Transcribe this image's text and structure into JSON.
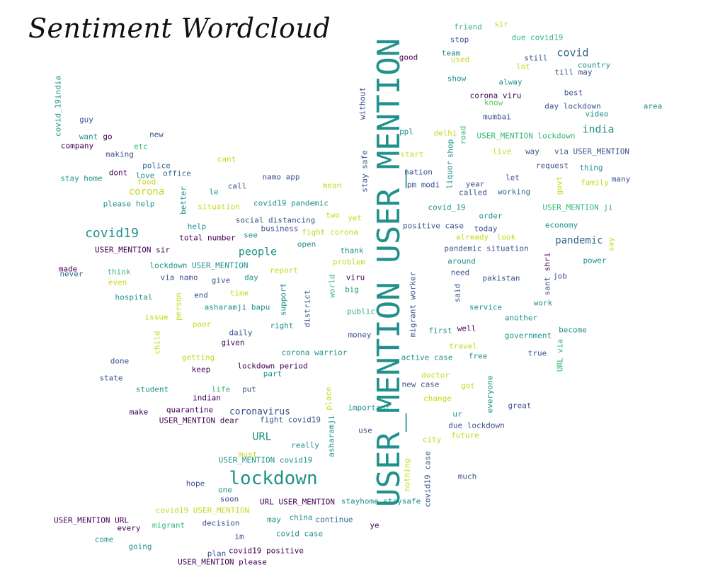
{
  "title": "Sentiment Wordcloud",
  "palette": {
    "dark_purple": "#440154",
    "indigo": "#3b528b",
    "blue": "#31688e",
    "teal": "#21918c",
    "green": "#35b779",
    "light_green": "#5ec962",
    "yellow": "#c8d71f"
  },
  "words": [
    {
      "text": "USER_MENTION USER_MENTION",
      "color": "teal"
    },
    {
      "text": "lockdown",
      "color": "teal"
    },
    {
      "text": "covid19",
      "color": "teal"
    },
    {
      "text": "people",
      "color": "teal"
    },
    {
      "text": "URL",
      "color": "teal"
    },
    {
      "text": "india",
      "color": "teal"
    },
    {
      "text": "covid",
      "color": "blue"
    },
    {
      "text": "pandemic",
      "color": "blue"
    },
    {
      "text": "corona",
      "color": "yellow"
    },
    {
      "text": "coronavirus",
      "color": "indigo"
    },
    {
      "text": "USER_MENTION lockdown",
      "color": "green"
    },
    {
      "text": "friend",
      "color": "green"
    },
    {
      "text": "sir",
      "color": "yellow"
    },
    {
      "text": "stop",
      "color": "indigo"
    },
    {
      "text": "due covid19",
      "color": "green"
    },
    {
      "text": "good",
      "color": "dark_purple"
    },
    {
      "text": "team",
      "color": "teal"
    },
    {
      "text": "used",
      "color": "yellow"
    },
    {
      "text": "still",
      "color": "indigo"
    },
    {
      "text": "country",
      "color": "teal"
    },
    {
      "text": "lot",
      "color": "yellow"
    },
    {
      "text": "till may",
      "color": "indigo"
    },
    {
      "text": "show",
      "color": "teal"
    },
    {
      "text": "alway",
      "color": "teal"
    },
    {
      "text": "corona viru",
      "color": "dark_purple"
    },
    {
      "text": "best",
      "color": "indigo"
    },
    {
      "text": "know",
      "color": "light_green"
    },
    {
      "text": "area",
      "color": "teal"
    },
    {
      "text": "day lockdown",
      "color": "indigo"
    },
    {
      "text": "video",
      "color": "teal"
    },
    {
      "text": "mumbai",
      "color": "indigo"
    },
    {
      "text": "without",
      "color": "indigo"
    },
    {
      "text": "covid_19india",
      "color": "teal"
    },
    {
      "text": "guy",
      "color": "indigo"
    },
    {
      "text": "want",
      "color": "teal"
    },
    {
      "text": "go",
      "color": "dark_purple"
    },
    {
      "text": "new",
      "color": "indigo"
    },
    {
      "text": "company",
      "color": "dark_purple"
    },
    {
      "text": "etc",
      "color": "green"
    },
    {
      "text": "making",
      "color": "indigo"
    },
    {
      "text": "ppl",
      "color": "teal"
    },
    {
      "text": "delhi",
      "color": "yellow"
    },
    {
      "text": "road",
      "color": "green"
    },
    {
      "text": "shop",
      "color": "teal"
    },
    {
      "text": "start",
      "color": "yellow"
    },
    {
      "text": "live",
      "color": "yellow"
    },
    {
      "text": "way",
      "color": "indigo"
    },
    {
      "text": "via USER_MENTION",
      "color": "indigo"
    },
    {
      "text": "stay safe",
      "color": "indigo"
    },
    {
      "text": "cant",
      "color": "yellow"
    },
    {
      "text": "police",
      "color": "blue"
    },
    {
      "text": "dont",
      "color": "dark_purple"
    },
    {
      "text": "love",
      "color": "teal"
    },
    {
      "text": "office",
      "color": "blue"
    },
    {
      "text": "food",
      "color": "yellow"
    },
    {
      "text": "stay home",
      "color": "teal"
    },
    {
      "text": "nation",
      "color": "indigo"
    },
    {
      "text": "liquor",
      "color": "teal"
    },
    {
      "text": "request",
      "color": "indigo"
    },
    {
      "text": "thing",
      "color": "teal"
    },
    {
      "text": "namo app",
      "color": "indigo"
    },
    {
      "text": "let",
      "color": "indigo"
    },
    {
      "text": "many",
      "color": "indigo"
    },
    {
      "text": "govt",
      "color": "yellow"
    },
    {
      "text": "family",
      "color": "yellow"
    },
    {
      "text": "better",
      "color": "teal"
    },
    {
      "text": "call",
      "color": "indigo"
    },
    {
      "text": "mean",
      "color": "yellow"
    },
    {
      "text": "pm modi",
      "color": "indigo"
    },
    {
      "text": "year",
      "color": "indigo"
    },
    {
      "text": "called",
      "color": "indigo"
    },
    {
      "text": "working",
      "color": "blue"
    },
    {
      "text": "le",
      "color": "teal"
    },
    {
      "text": "covid19 pandemic",
      "color": "teal"
    },
    {
      "text": "please help",
      "color": "teal"
    },
    {
      "text": "situation",
      "color": "yellow"
    },
    {
      "text": "covid_19",
      "color": "teal"
    },
    {
      "text": "USER_MENTION ji",
      "color": "green"
    },
    {
      "text": "two",
      "color": "yellow"
    },
    {
      "text": "yet",
      "color": "yellow"
    },
    {
      "text": "order",
      "color": "teal"
    },
    {
      "text": "social distancing",
      "color": "indigo"
    },
    {
      "text": "help",
      "color": "teal"
    },
    {
      "text": "business",
      "color": "indigo"
    },
    {
      "text": "positive case",
      "color": "indigo"
    },
    {
      "text": "economy",
      "color": "teal"
    },
    {
      "text": "fight corona",
      "color": "yellow"
    },
    {
      "text": "today",
      "color": "indigo"
    },
    {
      "text": "total number",
      "color": "dark_purple"
    },
    {
      "text": "see",
      "color": "teal"
    },
    {
      "text": "already",
      "color": "yellow"
    },
    {
      "text": "look",
      "color": "yellow"
    },
    {
      "text": "say",
      "color": "yellow"
    },
    {
      "text": "open",
      "color": "teal"
    },
    {
      "text": "USER_MENTION sir",
      "color": "dark_purple"
    },
    {
      "text": "thank",
      "color": "teal"
    },
    {
      "text": "pandemic situation",
      "color": "indigo"
    },
    {
      "text": "shri",
      "color": "dark_purple"
    },
    {
      "text": "lockdown USER_MENTION",
      "color": "teal"
    },
    {
      "text": "problem",
      "color": "yellow"
    },
    {
      "text": "around",
      "color": "teal"
    },
    {
      "text": "power",
      "color": "teal"
    },
    {
      "text": "made",
      "color": "dark_purple"
    },
    {
      "text": "think",
      "color": "green"
    },
    {
      "text": "report",
      "color": "yellow"
    },
    {
      "text": "never",
      "color": "blue"
    },
    {
      "text": "viru",
      "color": "dark_purple"
    },
    {
      "text": "need",
      "color": "indigo"
    },
    {
      "text": "via namo",
      "color": "indigo"
    },
    {
      "text": "day",
      "color": "teal"
    },
    {
      "text": "give",
      "color": "indigo"
    },
    {
      "text": "pakistan",
      "color": "indigo"
    },
    {
      "text": "job",
      "color": "indigo"
    },
    {
      "text": "even",
      "color": "yellow"
    },
    {
      "text": "world",
      "color": "green"
    },
    {
      "text": "sant",
      "color": "indigo"
    },
    {
      "text": "big",
      "color": "teal"
    },
    {
      "text": "migrant worker",
      "color": "indigo"
    },
    {
      "text": "support",
      "color": "teal"
    },
    {
      "text": "said",
      "color": "indigo"
    },
    {
      "text": "hospital",
      "color": "teal"
    },
    {
      "text": "end",
      "color": "indigo"
    },
    {
      "text": "time",
      "color": "yellow"
    },
    {
      "text": "work",
      "color": "teal"
    },
    {
      "text": "district",
      "color": "indigo"
    },
    {
      "text": "person",
      "color": "yellow"
    },
    {
      "text": "asharamji bapu",
      "color": "teal"
    },
    {
      "text": "service",
      "color": "teal"
    },
    {
      "text": "issue",
      "color": "yellow"
    },
    {
      "text": "public",
      "color": "green"
    },
    {
      "text": "another",
      "color": "teal"
    },
    {
      "text": "poor",
      "color": "yellow"
    },
    {
      "text": "right",
      "color": "teal"
    },
    {
      "text": "daily",
      "color": "indigo"
    },
    {
      "text": "money",
      "color": "indigo"
    },
    {
      "text": "first",
      "color": "teal"
    },
    {
      "text": "well",
      "color": "dark_purple"
    },
    {
      "text": "government",
      "color": "teal"
    },
    {
      "text": "become",
      "color": "teal"
    },
    {
      "text": "child",
      "color": "yellow"
    },
    {
      "text": "given",
      "color": "dark_purple"
    },
    {
      "text": "travel",
      "color": "yellow"
    },
    {
      "text": "corona warrior",
      "color": "teal"
    },
    {
      "text": "true",
      "color": "indigo"
    },
    {
      "text": "URL via",
      "color": "green"
    },
    {
      "text": "free",
      "color": "teal"
    },
    {
      "text": "getting",
      "color": "yellow"
    },
    {
      "text": "done",
      "color": "indigo"
    },
    {
      "text": "lockdown period",
      "color": "dark_purple"
    },
    {
      "text": "active case",
      "color": "teal"
    },
    {
      "text": "keep",
      "color": "dark_purple"
    },
    {
      "text": "part",
      "color": "teal"
    },
    {
      "text": "state",
      "color": "indigo"
    },
    {
      "text": "doctor",
      "color": "yellow"
    },
    {
      "text": "student",
      "color": "teal"
    },
    {
      "text": "life",
      "color": "green"
    },
    {
      "text": "put",
      "color": "indigo"
    },
    {
      "text": "new case",
      "color": "indigo"
    },
    {
      "text": "got",
      "color": "yellow"
    },
    {
      "text": "indian",
      "color": "dark_purple"
    },
    {
      "text": "place",
      "color": "yellow"
    },
    {
      "text": "change",
      "color": "yellow"
    },
    {
      "text": "everyone",
      "color": "teal"
    },
    {
      "text": "important",
      "color": "teal"
    },
    {
      "text": "make",
      "color": "dark_purple"
    },
    {
      "text": "quarantine",
      "color": "dark_purple"
    },
    {
      "text": "great",
      "color": "indigo"
    },
    {
      "text": "ur",
      "color": "teal"
    },
    {
      "text": "USER_MENTION dear",
      "color": "dark_purple"
    },
    {
      "text": "fight covid19",
      "color": "indigo"
    },
    {
      "text": "due lockdown",
      "color": "indigo"
    },
    {
      "text": "asharamji",
      "color": "teal"
    },
    {
      "text": "use",
      "color": "indigo"
    },
    {
      "text": "future",
      "color": "yellow"
    },
    {
      "text": "city",
      "color": "yellow"
    },
    {
      "text": "really",
      "color": "teal"
    },
    {
      "text": "must",
      "color": "yellow"
    },
    {
      "text": "USER_MENTION covid19",
      "color": "teal"
    },
    {
      "text": "covid19 case",
      "color": "indigo"
    },
    {
      "text": "nothing",
      "color": "yellow"
    },
    {
      "text": "much",
      "color": "indigo"
    },
    {
      "text": "hope",
      "color": "indigo"
    },
    {
      "text": "one",
      "color": "teal"
    },
    {
      "text": "soon",
      "color": "indigo"
    },
    {
      "text": "URL USER_MENTION",
      "color": "dark_purple"
    },
    {
      "text": "stayhome staysafe",
      "color": "teal"
    },
    {
      "text": "covid19 USER_MENTION",
      "color": "yellow"
    },
    {
      "text": "china",
      "color": "teal"
    },
    {
      "text": "may",
      "color": "teal"
    },
    {
      "text": "continue",
      "color": "blue"
    },
    {
      "text": "USER_MENTION URL",
      "color": "dark_purple"
    },
    {
      "text": "every",
      "color": "dark_purple"
    },
    {
      "text": "migrant",
      "color": "green"
    },
    {
      "text": "decision",
      "color": "indigo"
    },
    {
      "text": "ye",
      "color": "dark_purple"
    },
    {
      "text": "covid case",
      "color": "teal"
    },
    {
      "text": "im",
      "color": "indigo"
    },
    {
      "text": "come",
      "color": "teal"
    },
    {
      "text": "going",
      "color": "teal"
    },
    {
      "text": "plan",
      "color": "indigo"
    },
    {
      "text": "covid19 positive",
      "color": "dark_purple"
    },
    {
      "text": "USER_MENTION please",
      "color": "dark_purple"
    }
  ]
}
